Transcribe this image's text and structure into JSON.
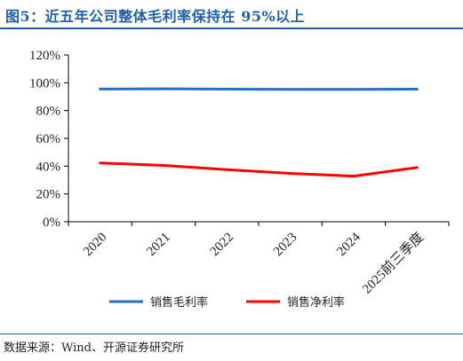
{
  "figure": {
    "title": "图5：近五年公司整体毛利率保持在 95%以上",
    "source": "数据来源：Wind、开源证券研究所"
  },
  "chart_data": {
    "type": "line",
    "title": "",
    "xlabel": "",
    "ylabel": "",
    "categories": [
      "2020",
      "2021",
      "2022",
      "2023",
      "2024",
      "2025前三季度"
    ],
    "ylim": [
      0,
      120
    ],
    "yticks": [
      "0%",
      "20%",
      "40%",
      "60%",
      "80%",
      "100%",
      "120%"
    ],
    "grid": false,
    "legend_position": "bottom",
    "series": [
      {
        "name": "销售毛利率",
        "color": "#1f6fc5",
        "values": [
          95.5,
          95.7,
          95.4,
          95.3,
          95.3,
          95.4
        ]
      },
      {
        "name": "销售净利率",
        "color": "#ff0000",
        "values": [
          42.3,
          40.5,
          37.5,
          34.8,
          32.8,
          39.0
        ]
      }
    ]
  }
}
